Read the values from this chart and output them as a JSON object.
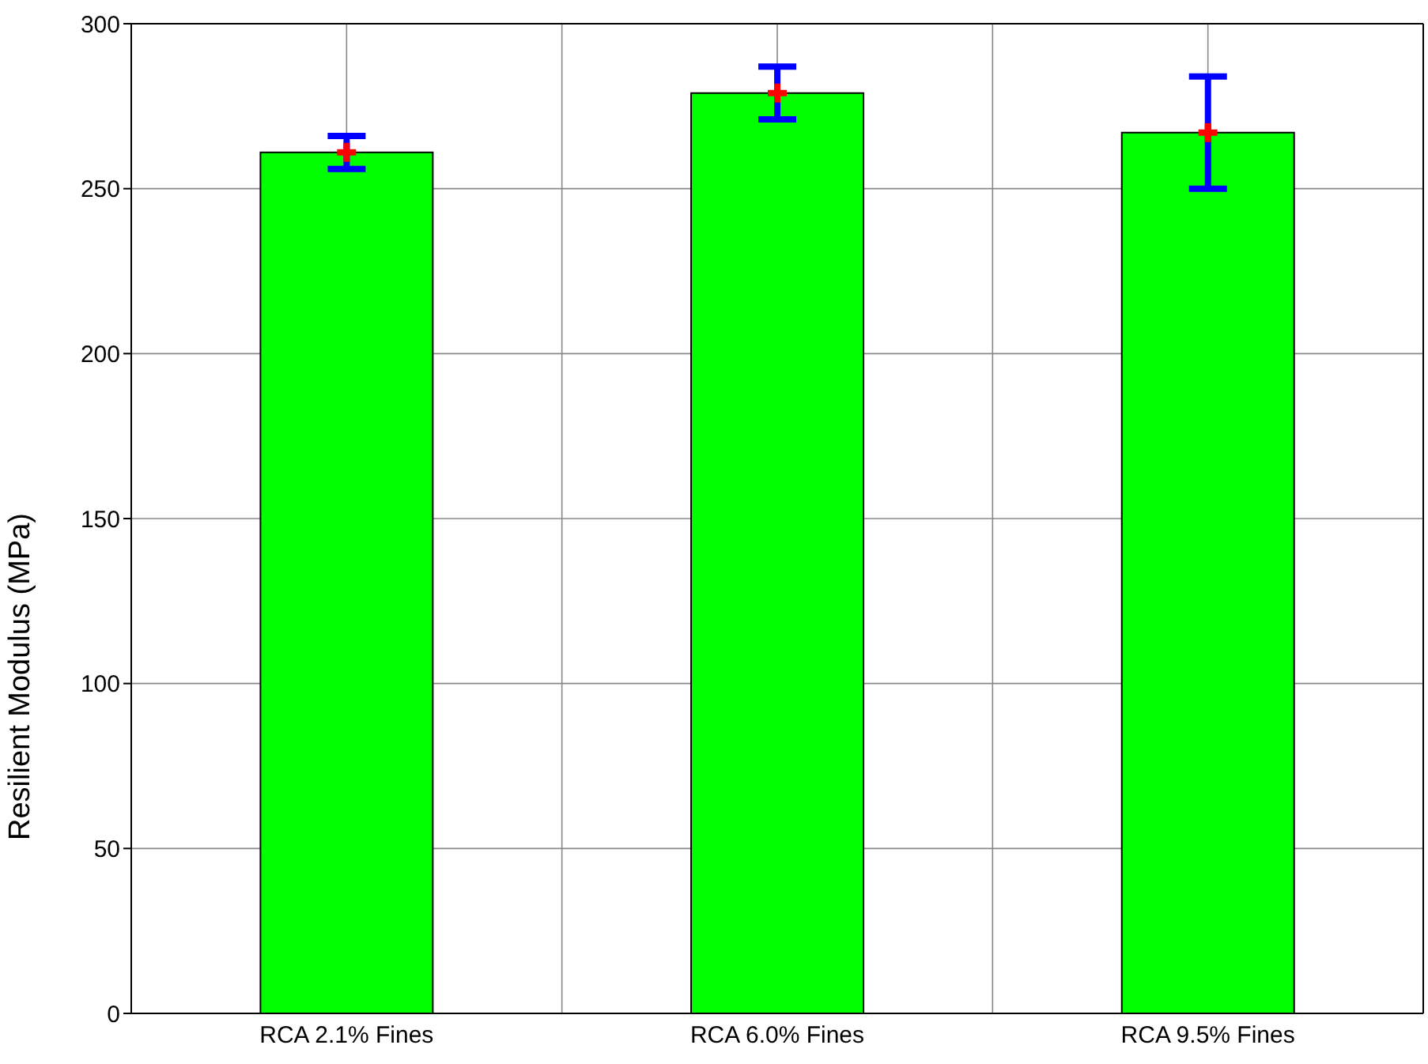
{
  "chart_data": {
    "type": "bar",
    "ylabel": "Resilient Modulus (MPa)",
    "categories": [
      "RCA 2.1% Fines",
      "RCA 6.0% Fines",
      "RCA 9.5% Fines"
    ],
    "series": [
      {
        "color": "#00ff00",
        "values": [
          261,
          279,
          267
        ],
        "errors": [
          [
            256,
            266
          ],
          [
            271,
            287
          ],
          [
            250,
            284
          ]
        ]
      },
      {
        "type": "scatter",
        "color": "#ff0000",
        "marker": "cross",
        "x": [
          "RCA 2.1% Fines",
          "RCA 6.0% Fines",
          "RCA 9.5% Fines"
        ],
        "values": [
          261,
          279,
          267
        ]
      }
    ],
    "ylim": [
      0,
      300
    ],
    "yticks": [
      0,
      50,
      100,
      150,
      200,
      250,
      300
    ],
    "grid": true,
    "legend": false
  }
}
